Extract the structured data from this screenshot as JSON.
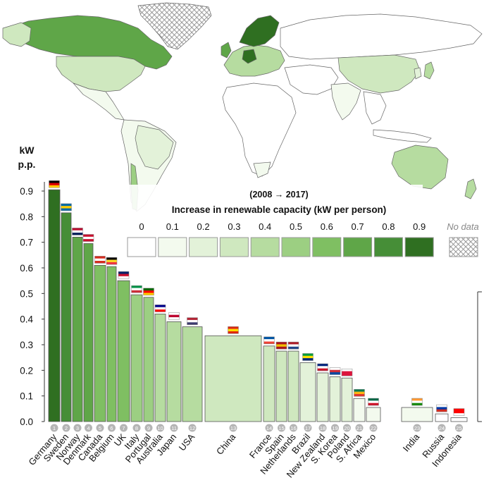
{
  "chart_data": {
    "type": "bar",
    "ylabel_line1": "kW",
    "ylabel_line2": "p.p.",
    "ylim": [
      0,
      0.9
    ],
    "yticks": [
      "0.0",
      "0.1",
      "0.2",
      "0.3",
      "0.4",
      "0.5",
      "0.6",
      "0.7",
      "0.8",
      "0.9"
    ],
    "grid": false,
    "bar_width": "proportional to population",
    "categories": [
      "Germany",
      "Sweden",
      "Norway",
      "Denmark",
      "Canada",
      "Belgium",
      "UK",
      "Italy",
      "Portugal",
      "Australia",
      "Japan",
      "USA",
      "China",
      "France",
      "Spain",
      "Netherlands",
      "Brazil",
      "New Zealand",
      "S. Korea",
      "Poland",
      "S. Africa",
      "Mexico",
      "India",
      "Russia",
      "Indonesia"
    ],
    "ranks": [
      "1",
      "2",
      "3",
      "4",
      "5",
      "6",
      "7",
      "8",
      "9",
      "10",
      "11",
      "12",
      "13",
      "14",
      "15",
      "16",
      "17",
      "18",
      "19",
      "20",
      "21",
      "22",
      "23",
      "24",
      "25"
    ],
    "values": [
      0.905,
      0.815,
      0.72,
      0.695,
      0.61,
      0.605,
      0.55,
      0.495,
      0.485,
      0.42,
      0.39,
      0.37,
      0.335,
      0.295,
      0.275,
      0.275,
      0.23,
      0.19,
      0.175,
      0.17,
      0.09,
      0.055,
      0.055,
      0.03,
      0.015
    ],
    "legend": {
      "period": "(2008 → 2017)",
      "title": "Increase in renewable capacity (kW per person)",
      "levels": [
        "0",
        "0.1",
        "0.2",
        "0.3",
        "0.4",
        "0.5",
        "0.6",
        "0.7",
        "0.8",
        "0.9"
      ],
      "no_data": "No data",
      "colors": [
        "#ffffff",
        "#f3faee",
        "#e3f2d9",
        "#cfe8bf",
        "#b6dca0",
        "#9ccf82",
        "#7fbf62",
        "#5fa648",
        "#468e37",
        "#2f6f21"
      ]
    }
  },
  "map": {
    "description_colors": {
      "ocean": "#ffffff",
      "land_no_increase": "#ffffff",
      "border": "#777777"
    }
  }
}
